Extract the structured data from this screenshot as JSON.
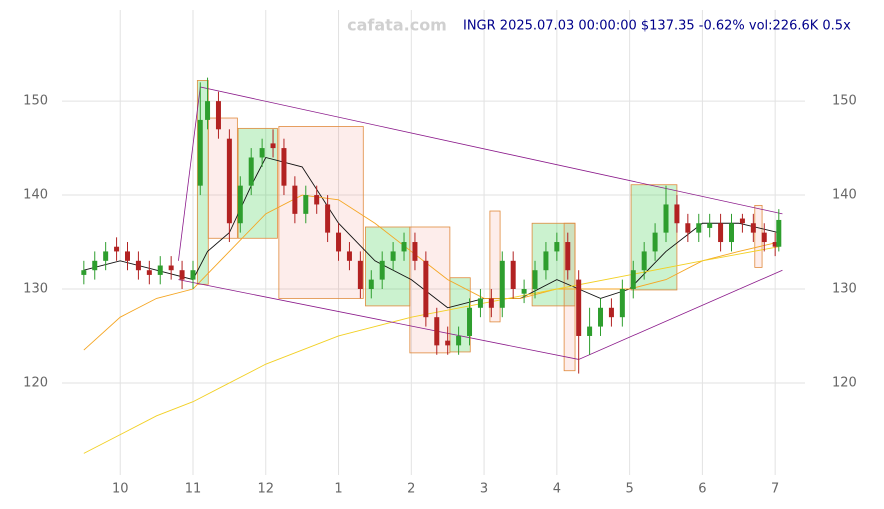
{
  "chart_data": {
    "type": "candlestick",
    "watermark": "cafata.com",
    "title": "INGR 2025.07.03 00:00:00 $137.35 -0.62% vol:226.6K 0.5x",
    "xlim": [
      9.2,
      19.41
    ],
    "xticks": [
      {
        "value": 10,
        "label": "10"
      },
      {
        "value": 11,
        "label": "11"
      },
      {
        "value": 12,
        "label": "12"
      },
      {
        "value": 13,
        "label": "1"
      },
      {
        "value": 14,
        "label": "2"
      },
      {
        "value": 15,
        "label": "3"
      },
      {
        "value": 16,
        "label": "4"
      },
      {
        "value": 17,
        "label": "5"
      },
      {
        "value": 18,
        "label": "6"
      },
      {
        "value": 19,
        "label": "7"
      }
    ],
    "ylim": [
      110.2,
      159.7
    ],
    "yticks": [
      120,
      130,
      140,
      150
    ],
    "grid": true,
    "up_color": "#2e9e2e",
    "down_color": "#b22222",
    "x": [
      9.5,
      9.65,
      9.8,
      9.95,
      10.1,
      10.25,
      10.4,
      10.55,
      10.7,
      10.85,
      11.0,
      11.1,
      11.2,
      11.35,
      11.5,
      11.65,
      11.8,
      11.95,
      12.1,
      12.25,
      12.4,
      12.55,
      12.7,
      12.85,
      13.0,
      13.15,
      13.3,
      13.45,
      13.6,
      13.75,
      13.9,
      14.05,
      14.2,
      14.35,
      14.5,
      14.65,
      14.8,
      14.95,
      15.1,
      15.25,
      15.4,
      15.55,
      15.7,
      15.85,
      16.0,
      16.15,
      16.3,
      16.45,
      16.6,
      16.75,
      16.9,
      17.05,
      17.2,
      17.35,
      17.5,
      17.65,
      17.8,
      17.95,
      18.1,
      18.25,
      18.4,
      18.55,
      18.7,
      18.85,
      19.0,
      19.05
    ],
    "open": [
      131.5,
      132,
      133,
      134.5,
      134,
      133,
      132,
      131.5,
      132.5,
      132,
      131,
      141,
      148,
      150,
      146,
      137,
      141,
      144,
      145.5,
      145,
      141,
      138,
      140,
      139,
      136,
      134,
      133,
      130,
      131,
      133,
      134,
      135,
      133,
      127,
      124.5,
      124,
      125,
      128,
      129,
      128,
      133,
      129.5,
      130,
      132,
      134,
      135,
      131,
      125,
      126,
      128,
      127,
      130,
      132,
      134,
      136,
      139,
      137,
      136,
      136.5,
      137,
      135,
      137.5,
      137,
      136,
      135,
      134.5
    ],
    "high": [
      133,
      134,
      135,
      135.5,
      135,
      134,
      133,
      133.5,
      133.5,
      133,
      133,
      152,
      152.5,
      151,
      147,
      142,
      145,
      146,
      147,
      146,
      142,
      141,
      141,
      140,
      137,
      135,
      134,
      132,
      134,
      135,
      136,
      136,
      134,
      128,
      126,
      126,
      129,
      130,
      130,
      134,
      134,
      131,
      133,
      135,
      136,
      136,
      132,
      128,
      129,
      129,
      131,
      133,
      135,
      137,
      141,
      140,
      138,
      138,
      138,
      138,
      138,
      138,
      138,
      137,
      136,
      138.5
    ],
    "low": [
      130.5,
      131,
      132,
      133,
      132,
      131,
      130.5,
      130.5,
      131,
      130,
      130,
      140,
      147,
      146,
      135,
      136,
      140,
      143,
      144,
      140,
      137,
      137,
      138,
      135,
      133,
      132,
      129,
      129,
      130,
      132,
      133,
      132,
      126,
      123,
      123,
      123,
      124,
      127,
      127,
      127,
      129,
      128.5,
      129,
      131,
      133,
      131,
      121,
      123,
      125,
      126,
      126,
      129,
      131,
      133,
      135,
      136,
      135,
      135,
      135.5,
      134,
      134,
      136,
      135,
      134,
      133.5,
      134
    ],
    "close": [
      132,
      133,
      134,
      134,
      133,
      132,
      131.5,
      132.5,
      132,
      131,
      132,
      148,
      150,
      147,
      137,
      141,
      144,
      145,
      145,
      141,
      138,
      140,
      139,
      136,
      134,
      133,
      130,
      131,
      133,
      134,
      135,
      133,
      127,
      124,
      124,
      125,
      128,
      129,
      128,
      133,
      130,
      130,
      132,
      134,
      135,
      132,
      125,
      126,
      128,
      127,
      130,
      132,
      134,
      136,
      139,
      137,
      136,
      137,
      137,
      135,
      137,
      137,
      136,
      135,
      134.5,
      137.35
    ],
    "overlays": [
      {
        "color": "#111111",
        "x": [
          9.5,
          10,
          10.5,
          11,
          11.2,
          11.5,
          11.8,
          12,
          12.5,
          13,
          13.5,
          14,
          14.5,
          15,
          15.5,
          16,
          16.3,
          16.6,
          17,
          17.5,
          18,
          18.5,
          19.05
        ],
        "values": [
          132,
          133,
          132,
          131,
          134,
          136,
          141,
          144,
          143,
          137,
          133,
          131,
          128,
          129,
          129,
          131,
          130,
          129,
          130,
          134,
          137,
          137,
          136
        ]
      },
      {
        "color": "#f5a623",
        "x": [
          9.5,
          10,
          10.5,
          11,
          11.5,
          12,
          12.5,
          13,
          13.5,
          14,
          14.5,
          15,
          15.5,
          16,
          16.5,
          17,
          17.5,
          18,
          18.5,
          19.05
        ],
        "values": [
          123.5,
          127,
          129,
          130,
          134,
          138,
          140,
          139.5,
          137,
          134,
          131,
          129,
          129,
          130,
          130,
          130,
          131,
          133,
          134,
          135
        ]
      },
      {
        "color": "#f2d024",
        "x": [
          9.5,
          10,
          10.5,
          11,
          11.5,
          12,
          12.5,
          13,
          13.5,
          14,
          15,
          16,
          17,
          18,
          19.05
        ],
        "values": [
          112.5,
          114.5,
          116.5,
          118,
          120,
          122,
          123.5,
          125,
          126,
          127,
          128.5,
          130,
          131.5,
          133,
          134.5
        ]
      }
    ],
    "trendlines": [
      {
        "color": "#8b1a8b",
        "x": [
          10.8,
          11.1,
          19.1
        ],
        "values": [
          133,
          151.5,
          138
        ]
      },
      {
        "color": "#8b1a8b",
        "x": [
          10.8,
          16.3,
          19.1
        ],
        "values": [
          131,
          122.5,
          132
        ]
      }
    ],
    "zones": [
      {
        "color": "#2ecc40",
        "x": [
          11.06,
          11.21
        ],
        "y": [
          130.5,
          152.2
        ]
      },
      {
        "color": "#e74c3c",
        "x": [
          11.21,
          11.61
        ],
        "y": [
          135.4,
          148.2
        ]
      },
      {
        "color": "#2ecc40",
        "x": [
          11.62,
          12.16
        ],
        "y": [
          135.4,
          147.1
        ]
      },
      {
        "color": "#e74c3c",
        "x": [
          12.18,
          13.34
        ],
        "y": [
          129,
          147.3
        ]
      },
      {
        "color": "#2ecc40",
        "x": [
          13.37,
          13.98
        ],
        "y": [
          128.2,
          136.6
        ]
      },
      {
        "color": "#e74c3c",
        "x": [
          13.98,
          14.53
        ],
        "y": [
          123.2,
          136.6
        ]
      },
      {
        "color": "#2ecc40",
        "x": [
          14.53,
          14.81
        ],
        "y": [
          123.3,
          131.2
        ]
      },
      {
        "color": "#e74c3c",
        "x": [
          15.08,
          15.22
        ],
        "y": [
          126.5,
          138.3
        ]
      },
      {
        "color": "#2ecc40",
        "x": [
          15.66,
          16.25
        ],
        "y": [
          128.2,
          137
        ]
      },
      {
        "color": "#e74c3c",
        "x": [
          16.1,
          16.25
        ],
        "y": [
          121.3,
          137
        ]
      },
      {
        "color": "#2ecc40",
        "x": [
          17.02,
          17.65
        ],
        "y": [
          129.9,
          141.1
        ]
      },
      {
        "color": "#e74c3c",
        "x": [
          18.72,
          18.82
        ],
        "y": [
          132.3,
          138.9
        ]
      }
    ]
  }
}
